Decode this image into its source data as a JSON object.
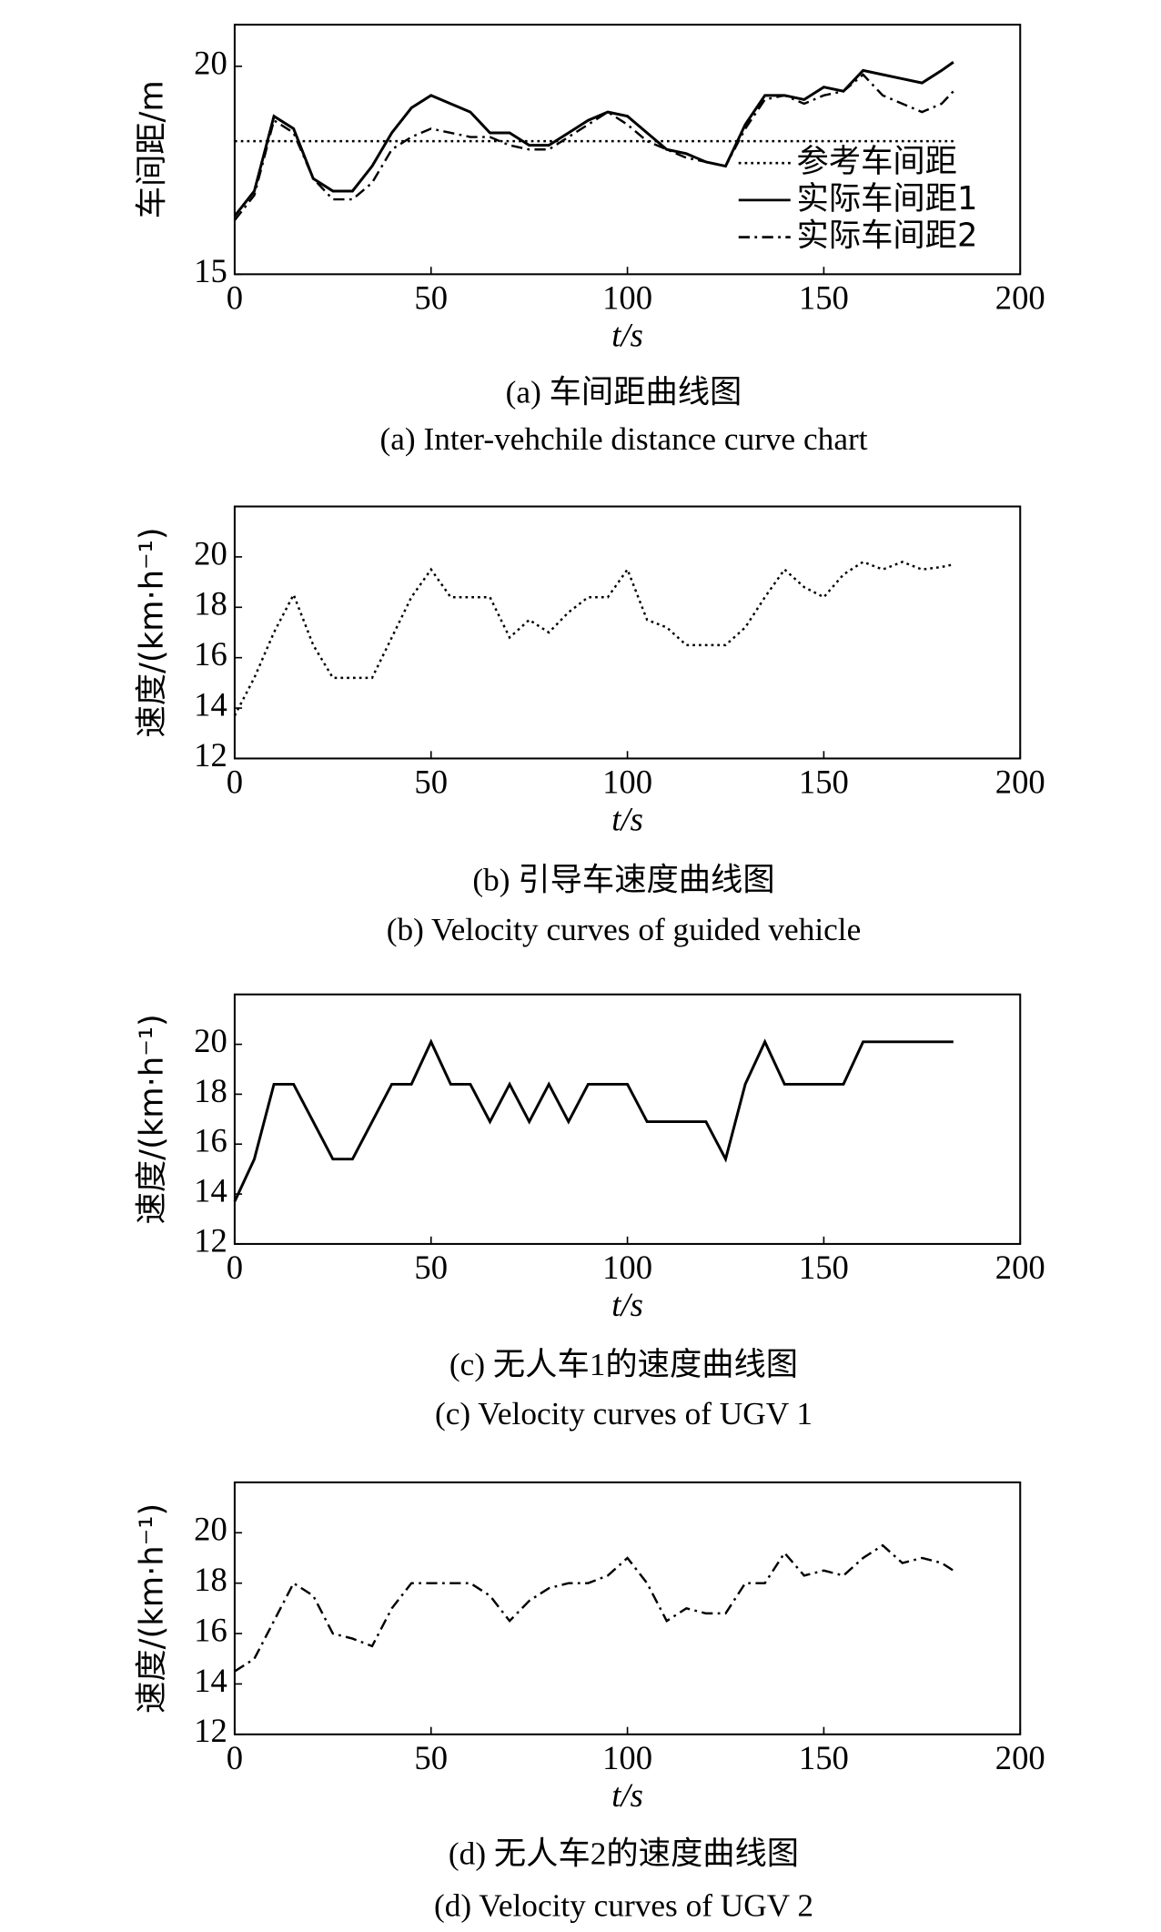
{
  "chart_data": [
    {
      "type": "line",
      "caption": "(a) 车间距曲线图",
      "caption_en": "(a) Inter-vehchile distance curve chart",
      "xlabel": "t/s",
      "ylabel": "车间距/m",
      "xlim": [
        0,
        200
      ],
      "xticks": [
        0,
        50,
        100,
        150,
        200
      ],
      "ylim": [
        15,
        21
      ],
      "yticks": [
        15,
        20
      ],
      "legend": "lower right",
      "x": [
        0,
        5,
        10,
        15,
        20,
        25,
        30,
        35,
        40,
        45,
        50,
        55,
        60,
        65,
        70,
        75,
        80,
        85,
        90,
        95,
        100,
        105,
        110,
        115,
        120,
        125,
        130,
        135,
        140,
        145,
        150,
        155,
        160,
        165,
        170,
        175,
        180,
        183
      ],
      "series": [
        {
          "name": "参考车间距",
          "color": "#000000",
          "line_style": "dotted",
          "values": [
            18.2,
            18.2,
            18.2,
            18.2,
            18.2,
            18.2,
            18.2,
            18.2,
            18.2,
            18.2,
            18.2,
            18.2,
            18.2,
            18.2,
            18.2,
            18.2,
            18.2,
            18.2,
            18.2,
            18.2,
            18.2,
            18.2,
            18.2,
            18.2,
            18.2,
            18.2,
            18.2,
            18.2,
            18.2,
            18.2,
            18.2,
            18.2,
            18.2,
            18.2,
            18.2,
            18.2,
            18.2,
            18.2
          ]
        },
        {
          "name": "实际车间距1",
          "color": "#000000",
          "line_style": "solid",
          "values": [
            16.4,
            17,
            18.8,
            18.5,
            17.3,
            17,
            17,
            17.6,
            18.4,
            19,
            19.3,
            19.1,
            18.9,
            18.4,
            18.4,
            18.1,
            18.1,
            18.4,
            18.7,
            18.9,
            18.8,
            18.4,
            18,
            17.9,
            17.7,
            17.6,
            18.6,
            19.3,
            19.3,
            19.2,
            19.5,
            19.4,
            19.9,
            19.8,
            19.7,
            19.6,
            19.9,
            20.1
          ]
        },
        {
          "name": "实际车间距2",
          "color": "#000000",
          "line_style": "dashdot",
          "values": [
            16.3,
            16.9,
            18.7,
            18.4,
            17.3,
            16.8,
            16.8,
            17.2,
            18,
            18.3,
            18.5,
            18.4,
            18.3,
            18.3,
            18.1,
            18,
            18,
            18.3,
            18.6,
            18.9,
            18.6,
            18.2,
            18,
            17.8,
            17.7,
            17.6,
            18.5,
            19.2,
            19.3,
            19.1,
            19.3,
            19.4,
            19.8,
            19.3,
            19.1,
            18.9,
            19.1,
            19.4
          ]
        }
      ]
    },
    {
      "type": "line",
      "caption": "(b) 引导车速度曲线图",
      "caption_en": "(b) Velocity curves of guided vehicle",
      "xlabel": "t/s",
      "ylabel": "速度/(km·h⁻¹)",
      "xlim": [
        0,
        200
      ],
      "xticks": [
        0,
        50,
        100,
        150,
        200
      ],
      "ylim": [
        12,
        22
      ],
      "yticks": [
        12,
        14,
        16,
        18,
        20
      ],
      "x": [
        0,
        5,
        10,
        15,
        20,
        25,
        30,
        35,
        40,
        45,
        50,
        55,
        60,
        65,
        70,
        75,
        80,
        85,
        90,
        95,
        100,
        105,
        110,
        115,
        120,
        125,
        130,
        135,
        140,
        145,
        150,
        155,
        160,
        165,
        170,
        175,
        180,
        183
      ],
      "series": [
        {
          "color": "#000000",
          "line_style": "dotted",
          "values": [
            13.7,
            15.2,
            17,
            18.5,
            16.5,
            15.2,
            15.2,
            15.2,
            16.8,
            18.4,
            19.5,
            18.4,
            18.4,
            18.4,
            16.8,
            17.5,
            17,
            17.8,
            18.4,
            18.4,
            19.5,
            17.5,
            17.2,
            16.5,
            16.5,
            16.5,
            17.2,
            18.4,
            19.5,
            18.8,
            18.4,
            19.3,
            19.8,
            19.5,
            19.8,
            19.5,
            19.6,
            19.7
          ]
        }
      ]
    },
    {
      "type": "line",
      "caption": "(c) 无人车1的速度曲线图",
      "caption_en": "(c) Velocity curves of UGV 1",
      "xlabel": "t/s",
      "ylabel": "速度/(km·h⁻¹)",
      "xlim": [
        0,
        200
      ],
      "xticks": [
        0,
        50,
        100,
        150,
        200
      ],
      "ylim": [
        12,
        22
      ],
      "yticks": [
        12,
        14,
        16,
        18,
        20
      ],
      "x": [
        0,
        5,
        10,
        15,
        20,
        25,
        30,
        35,
        40,
        45,
        50,
        55,
        60,
        65,
        70,
        75,
        80,
        85,
        90,
        95,
        100,
        105,
        110,
        115,
        120,
        125,
        130,
        135,
        140,
        145,
        150,
        155,
        160,
        165,
        170,
        175,
        180,
        183
      ],
      "series": [
        {
          "color": "#000000",
          "line_style": "solid",
          "values": [
            13.7,
            15.4,
            18.4,
            18.4,
            16.9,
            15.4,
            15.4,
            16.9,
            18.4,
            18.4,
            20.1,
            18.4,
            18.4,
            16.9,
            18.4,
            16.9,
            18.4,
            16.9,
            18.4,
            18.4,
            18.4,
            16.9,
            16.9,
            16.9,
            16.9,
            15.4,
            18.4,
            20.1,
            18.4,
            18.4,
            18.4,
            18.4,
            20.1,
            20.1,
            20.1,
            20.1,
            20.1,
            20.1
          ]
        }
      ]
    },
    {
      "type": "line",
      "caption": "(d) 无人车2的速度曲线图",
      "caption_en": "(d) Velocity curves of UGV 2",
      "xlabel": "t/s",
      "ylabel": "速度/(km·h⁻¹)",
      "xlim": [
        0,
        200
      ],
      "xticks": [
        0,
        50,
        100,
        150,
        200
      ],
      "ylim": [
        12,
        22
      ],
      "yticks": [
        12,
        14,
        16,
        18,
        20
      ],
      "x": [
        0,
        5,
        10,
        15,
        20,
        25,
        30,
        35,
        40,
        45,
        50,
        55,
        60,
        65,
        70,
        75,
        80,
        85,
        90,
        95,
        100,
        105,
        110,
        115,
        120,
        125,
        130,
        135,
        140,
        145,
        150,
        155,
        160,
        165,
        170,
        175,
        180,
        183
      ],
      "series": [
        {
          "color": "#000000",
          "line_style": "dashdot",
          "values": [
            14.5,
            15,
            16.5,
            18,
            17.5,
            16,
            15.8,
            15.5,
            17,
            18,
            18,
            18,
            18,
            17.5,
            16.5,
            17.3,
            17.8,
            18,
            18,
            18.3,
            19,
            18,
            16.5,
            17,
            16.8,
            16.8,
            18,
            18,
            19.2,
            18.3,
            18.5,
            18.3,
            19,
            19.5,
            18.8,
            19,
            18.8,
            18.5
          ]
        }
      ]
    }
  ]
}
